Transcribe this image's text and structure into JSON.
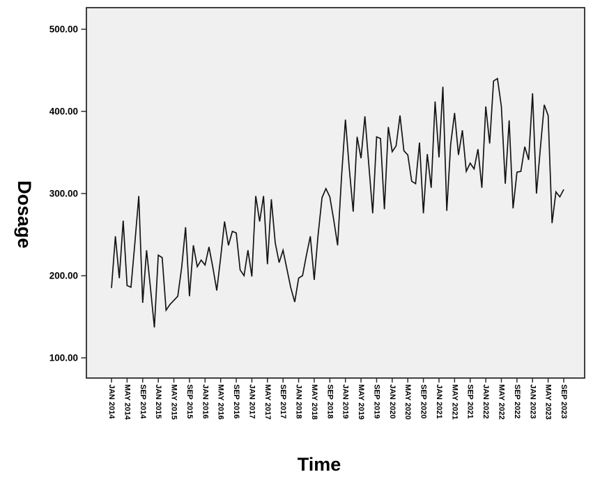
{
  "chart_data": {
    "type": "line",
    "title": "",
    "xlabel": "Time",
    "ylabel": "Dosage",
    "x_period": {
      "start": "JAN 2014",
      "end": "SEP 2023",
      "interval": "monthly",
      "count": 117
    },
    "x_tick_labels": [
      "JAN 2014",
      "MAY 2014",
      "SEP 2014",
      "JAN 2015",
      "MAY 2015",
      "SEP 2015",
      "JAN 2016",
      "MAY 2016",
      "SEP 2016",
      "JAN 2017",
      "MAY 2017",
      "SEP 2017",
      "JAN 2018",
      "MAY 2018",
      "SEP 2018",
      "JAN 2019",
      "MAY 2019",
      "SEP 2019",
      "JAN 2020",
      "MAY 2020",
      "SEP 2020",
      "JAN 2021",
      "MAY 2021",
      "SEP 2021",
      "JAN 2022",
      "MAY 2022",
      "SEP 2022",
      "JAN 2023",
      "MAY 2023",
      "SEP 2023"
    ],
    "x_tick_every_months": 4,
    "y_ticks": [
      100,
      200,
      300,
      400,
      500
    ],
    "y_tick_labels": [
      "100.00",
      "200.00",
      "300.00",
      "400.00",
      "500.00"
    ],
    "ylim": [
      73,
      524
    ],
    "grid": false,
    "legend": "none",
    "series": [
      {
        "name": "Dosage",
        "values": [
          185,
          248,
          197,
          267,
          188,
          186,
          240,
          297,
          167,
          231,
          185,
          137,
          225,
          222,
          158,
          165,
          170,
          175,
          210,
          259,
          175,
          237,
          211,
          219,
          213,
          235,
          210,
          182,
          222,
          266,
          237,
          254,
          252,
          207,
          200,
          231,
          199,
          297,
          266,
          297,
          214,
          293,
          240,
          216,
          231,
          208,
          185,
          168,
          197,
          200,
          225,
          248,
          195,
          250,
          295,
          306,
          296,
          268,
          237,
          320,
          390,
          330,
          278,
          369,
          343,
          394,
          335,
          276,
          369,
          367,
          281,
          381,
          351,
          358,
          395,
          352,
          347,
          315,
          312,
          362,
          276,
          348,
          307,
          412,
          344,
          430,
          279,
          360,
          398,
          347,
          377,
          327,
          337,
          330,
          354,
          307,
          406,
          361,
          437,
          440,
          406,
          312,
          389,
          282,
          326,
          327,
          357,
          341,
          422,
          300,
          355,
          408,
          395,
          264,
          302,
          296,
          305
        ]
      }
    ],
    "colors": {
      "line": "#141414",
      "plot_background": "#f0f0f0",
      "frame": "#2b2b2b",
      "text": "#000000",
      "outer_background": "#ffffff"
    }
  }
}
